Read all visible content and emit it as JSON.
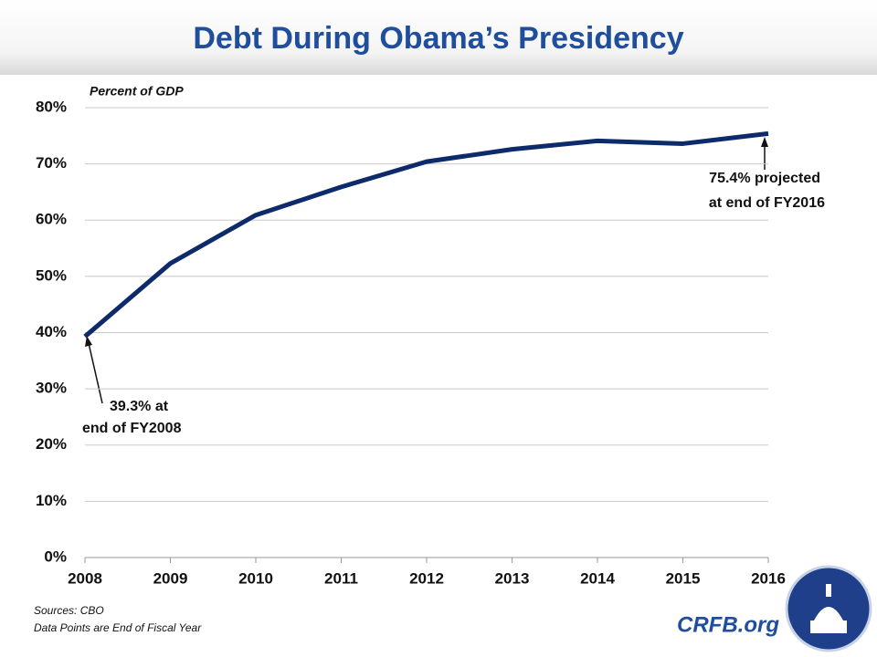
{
  "chart_data": {
    "type": "line",
    "title": "Debt During Obama’s Presidency",
    "y_label": "Percent of GDP",
    "x": [
      2008,
      2009,
      2010,
      2011,
      2012,
      2013,
      2014,
      2015,
      2016
    ],
    "values": [
      39.3,
      52.3,
      60.9,
      65.9,
      70.4,
      72.6,
      74.1,
      73.6,
      75.4
    ],
    "color": "#0d2a6b",
    "xlim": [
      2008,
      2016
    ],
    "xticks": [
      2008,
      2009,
      2010,
      2011,
      2012,
      2013,
      2014,
      2015,
      2016
    ],
    "ylim": [
      0,
      80
    ],
    "yticks": [
      {
        "value": 0,
        "label": "0%"
      },
      {
        "value": 10,
        "label": "10%"
      },
      {
        "value": 20,
        "label": "20%"
      },
      {
        "value": 30,
        "label": "30%"
      },
      {
        "value": 40,
        "label": "40%"
      },
      {
        "value": 50,
        "label": "50%"
      },
      {
        "value": 60,
        "label": "60%"
      },
      {
        "value": 70,
        "label": "70%"
      },
      {
        "value": 80,
        "label": "80%"
      }
    ],
    "grid": true,
    "annotations": [
      [
        "39.3% at",
        "end of FY2008"
      ],
      [
        "75.4% projected",
        "at end of FY2016"
      ]
    ],
    "notes": [
      "Sources:  CBO",
      "Data Points are End of Fiscal Year"
    ],
    "logo_text": "CRFB.org"
  }
}
